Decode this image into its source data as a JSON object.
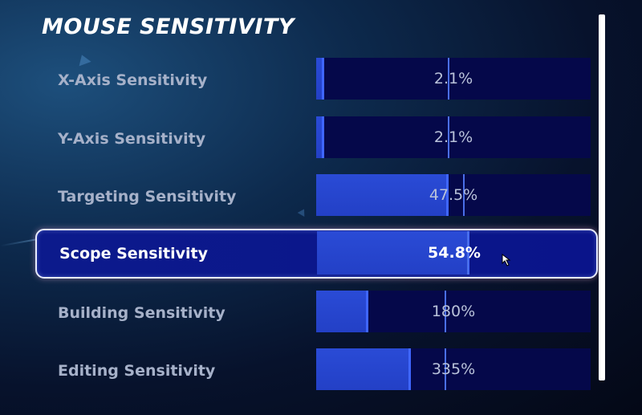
{
  "title": "MOUSE SENSITIVITY",
  "settings": [
    {
      "label": "X-Axis Sensitivity",
      "value": "2.1%",
      "fill_fraction": 0.021,
      "marker_fraction": 0.48,
      "selected": false
    },
    {
      "label": "Y-Axis Sensitivity",
      "value": "2.1%",
      "fill_fraction": 0.021,
      "marker_fraction": 0.48,
      "selected": false
    },
    {
      "label": "Targeting Sensitivity",
      "value": "47.5%",
      "fill_fraction": 0.475,
      "marker_fraction": 0.535,
      "selected": false
    },
    {
      "label": "Scope Sensitivity",
      "value": "54.8%",
      "fill_fraction": 0.548,
      "marker_fraction": 0.548,
      "selected": true
    },
    {
      "label": "Building Sensitivity",
      "value": "180%",
      "fill_fraction": 0.18,
      "marker_fraction": 0.468,
      "selected": false
    },
    {
      "label": "Editing Sensitivity",
      "value": "335%",
      "fill_fraction": 0.335,
      "marker_fraction": 0.468,
      "selected": false
    }
  ],
  "colors": {
    "accent": "#2a4bd6",
    "track": "#05084a",
    "selected_bg": "#0c1a8c"
  },
  "icons": {
    "cursor": "mouse-pointer-icon"
  }
}
